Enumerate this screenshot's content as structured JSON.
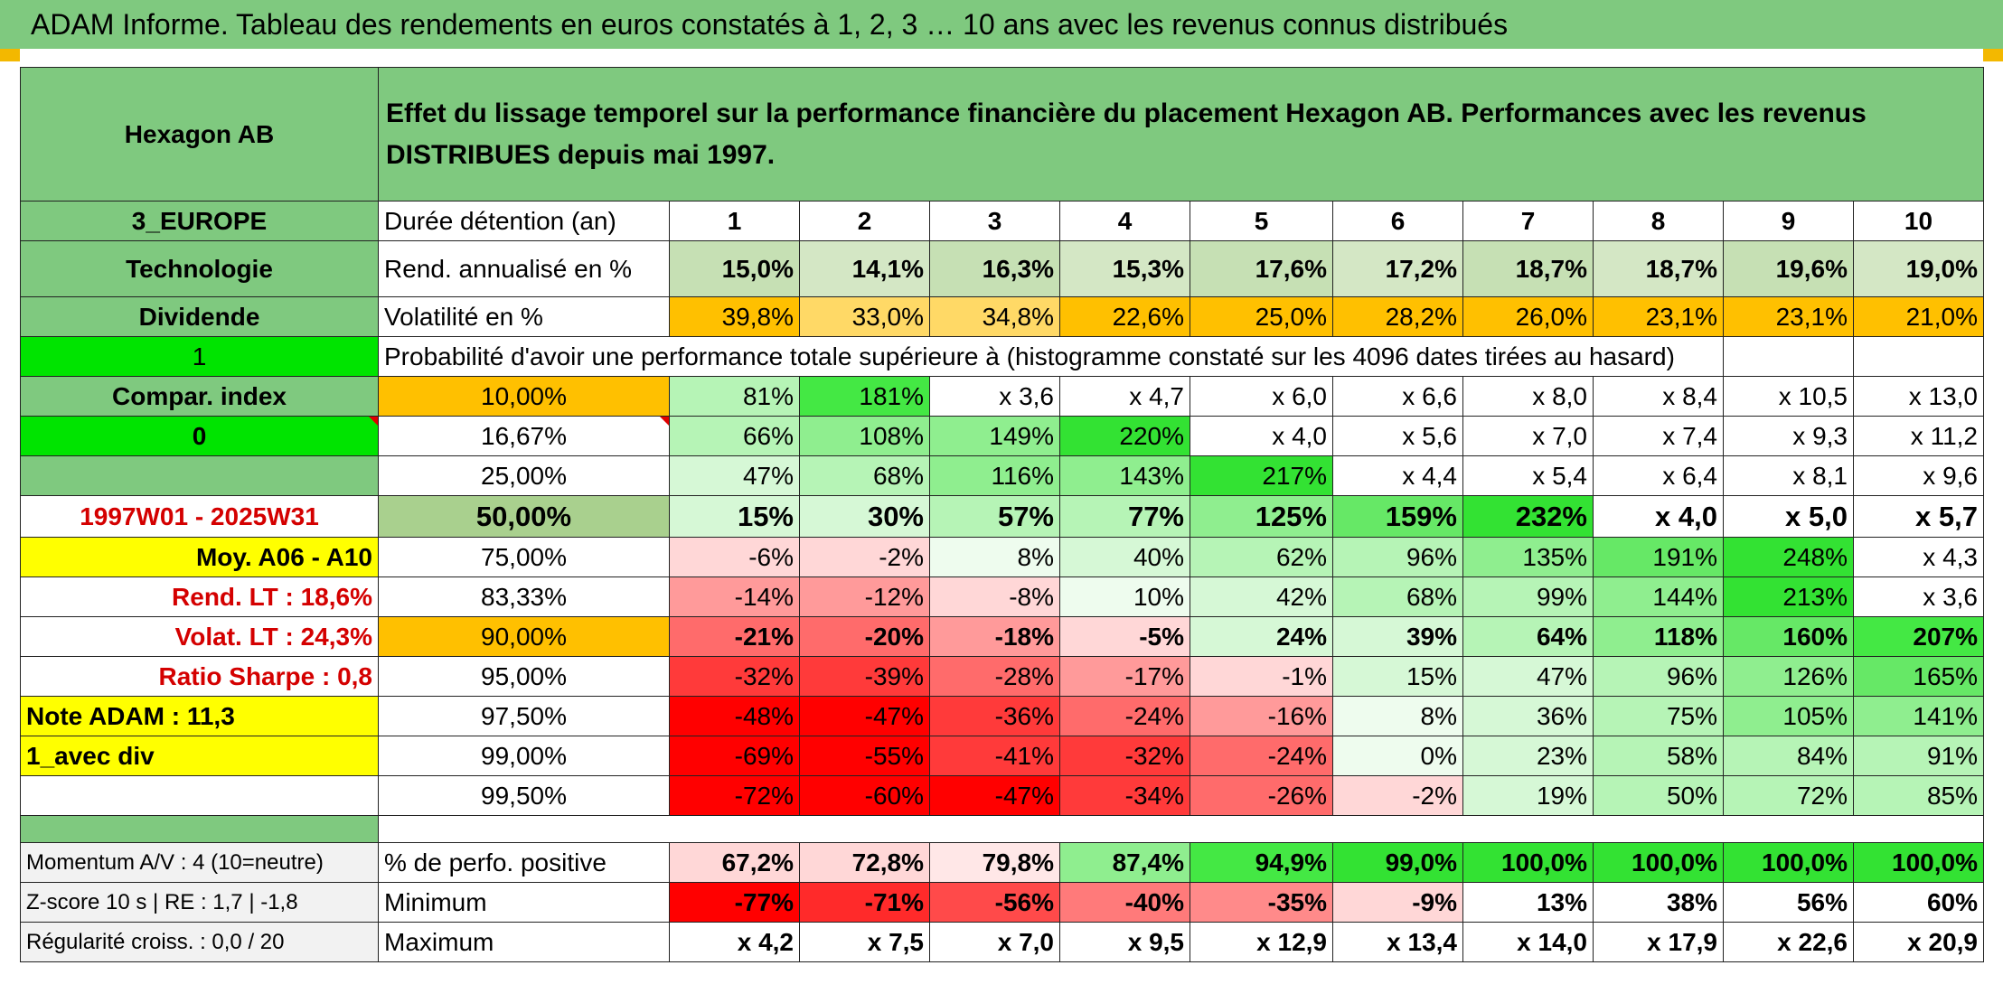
{
  "title": "ADAM Informe. Tableau des rendements en euros constatés à 1, 2, 3 … 10 ans avec les revenus connus distribués",
  "header": {
    "asset": "Hexagon AB",
    "description": "Effet du lissage temporel sur la performance financière du placement Hexagon AB. Performances avec les revenus DISTRIBUES depuis mai 1997."
  },
  "rows": {
    "duration": {
      "side": "3_EUROPE",
      "label": "Durée détention (an)",
      "years": [
        "1",
        "2",
        "3",
        "4",
        "5",
        "6",
        "7",
        "8",
        "9",
        "10"
      ]
    },
    "return": {
      "side": "Technologie",
      "label": "Rend. annualisé en %",
      "values": [
        "15,0%",
        "14,1%",
        "16,3%",
        "15,3%",
        "17,6%",
        "17,2%",
        "18,7%",
        "18,7%",
        "19,6%",
        "19,0%"
      ]
    },
    "vol": {
      "side": "Dividende",
      "label": "Volatilité en %",
      "values": [
        "39,8%",
        "33,0%",
        "34,8%",
        "22,6%",
        "25,0%",
        "28,2%",
        "26,0%",
        "23,1%",
        "23,1%",
        "21,0%"
      ]
    },
    "prob": {
      "side": "1",
      "label": "Probabilité d'avoir une performance totale supérieure à (histogramme constaté sur les 4096 dates tirées au hasard)"
    }
  },
  "quantiles": [
    {
      "side": "Compar. index",
      "q": "10,00%",
      "values": [
        "81%",
        "181%",
        "x 3,6",
        "x 4,7",
        "x 6,0",
        "x 6,6",
        "x 8,0",
        "x 8,4",
        "x 10,5",
        "x 13,0"
      ]
    },
    {
      "side": "0",
      "q": "16,67%",
      "values": [
        "66%",
        "108%",
        "149%",
        "220%",
        "x 4,0",
        "x 5,6",
        "x 7,0",
        "x 7,4",
        "x 9,3",
        "x 11,2"
      ]
    },
    {
      "side": "",
      "q": "25,00%",
      "values": [
        "47%",
        "68%",
        "116%",
        "143%",
        "217%",
        "x 4,4",
        "x 5,4",
        "x 6,4",
        "x 8,1",
        "x 9,6"
      ]
    },
    {
      "side": "1997W01 - 2025W31",
      "q": "50,00%",
      "values": [
        "15%",
        "30%",
        "57%",
        "77%",
        "125%",
        "159%",
        "232%",
        "x 4,0",
        "x 5,0",
        "x 5,7"
      ]
    },
    {
      "side": "Moy. A06 - A10",
      "q": "75,00%",
      "values": [
        "-6%",
        "-2%",
        "8%",
        "40%",
        "62%",
        "96%",
        "135%",
        "191%",
        "248%",
        "x 4,3"
      ]
    },
    {
      "side": "Rend. LT :    18,6%",
      "q": "83,33%",
      "values": [
        "-14%",
        "-12%",
        "-8%",
        "10%",
        "42%",
        "68%",
        "99%",
        "144%",
        "213%",
        "x 3,6"
      ]
    },
    {
      "side": "Volat. LT :    24,3%",
      "q": "90,00%",
      "values": [
        "-21%",
        "-20%",
        "-18%",
        "-5%",
        "24%",
        "39%",
        "64%",
        "118%",
        "160%",
        "207%"
      ]
    },
    {
      "side": "Ratio Sharpe :    0,8",
      "q": "95,00%",
      "values": [
        "-32%",
        "-39%",
        "-28%",
        "-17%",
        "-1%",
        "15%",
        "47%",
        "96%",
        "126%",
        "165%"
      ]
    },
    {
      "side": "Note ADAM : 11,3",
      "q": "97,50%",
      "values": [
        "-48%",
        "-47%",
        "-36%",
        "-24%",
        "-16%",
        "8%",
        "36%",
        "75%",
        "105%",
        "141%"
      ]
    },
    {
      "side": "1_avec div",
      "q": "99,00%",
      "values": [
        "-69%",
        "-55%",
        "-41%",
        "-32%",
        "-24%",
        "0%",
        "23%",
        "58%",
        "84%",
        "91%"
      ]
    },
    {
      "side": "",
      "q": "99,50%",
      "values": [
        "-72%",
        "-60%",
        "-47%",
        "-34%",
        "-26%",
        "-2%",
        "19%",
        "50%",
        "72%",
        "85%"
      ]
    }
  ],
  "summary": [
    {
      "side": "Momentum A/V : 4 (10=neutre)",
      "label": "% de perfo. positive",
      "values": [
        "67,2%",
        "72,8%",
        "79,8%",
        "87,4%",
        "94,9%",
        "99,0%",
        "100,0%",
        "100,0%",
        "100,0%",
        "100,0%"
      ]
    },
    {
      "side": "Z-score 10 s | RE : 1,7 | -1,8",
      "label": "Minimum",
      "values": [
        "-77%",
        "-71%",
        "-56%",
        "-40%",
        "-35%",
        "-9%",
        "13%",
        "38%",
        "56%",
        "60%"
      ]
    },
    {
      "side": "Régularité croiss. : 0,0 / 20",
      "label": "Maximum",
      "values": [
        "x 4,2",
        "x 7,5",
        "x 7,0",
        "x 9,5",
        "x 12,9",
        "x 13,4",
        "x 14,0",
        "x 17,9",
        "x 22,6",
        "x 20,9"
      ]
    }
  ],
  "colors": {
    "header_green": "#7fc97f",
    "bright_green": "#00e400",
    "orange": "#ffc000",
    "yellow": "#ffff00",
    "red_text": "#d40000"
  }
}
